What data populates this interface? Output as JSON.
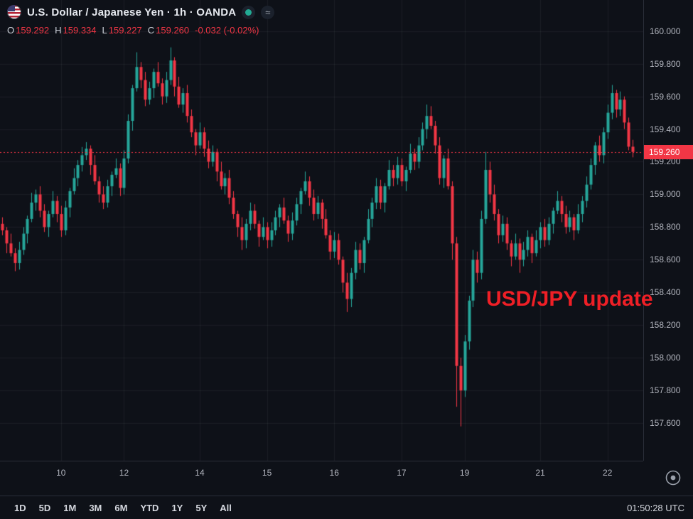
{
  "header": {
    "title": "U.S. Dollar / Japanese Yen · 1h · OANDA",
    "approx_symbol": "≈"
  },
  "ohlc": {
    "o_label": "O",
    "o": "159.292",
    "h_label": "H",
    "h": "159.334",
    "l_label": "L",
    "l": "159.227",
    "c_label": "C",
    "c": "159.260",
    "change": "-0.032 (-0.02%)"
  },
  "annotation": {
    "text": "USD/JPY update"
  },
  "price_axis": {
    "last_price_label": "159.260"
  },
  "time_axis": {
    "ticks": [
      {
        "label": "10",
        "bar": 14.5
      },
      {
        "label": "12",
        "bar": 29.5
      },
      {
        "label": "14",
        "bar": 47.5
      },
      {
        "label": "15",
        "bar": 63.5
      },
      {
        "label": "16",
        "bar": 79.5
      },
      {
        "label": "17",
        "bar": 95.5
      },
      {
        "label": "19",
        "bar": 110.5
      },
      {
        "label": "21",
        "bar": 128.5
      },
      {
        "label": "22",
        "bar": 144.5
      }
    ]
  },
  "toolbar": {
    "ranges": [
      "1D",
      "5D",
      "1M",
      "3M",
      "6M",
      "YTD",
      "1Y",
      "5Y",
      "All"
    ],
    "clock": "01:50:28 UTC"
  },
  "colors": {
    "bg": "#0e1118",
    "grid": "rgba(255,255,255,0.055)",
    "axis_text": "#b2b5be"
  },
  "chart_data": {
    "type": "candlestick",
    "title": "U.S. Dollar / Japanese Yen",
    "interval": "1h",
    "provider": "OANDA",
    "last_price": 159.26,
    "price_min": 157.37,
    "price_max": 160.19,
    "grid_step": 0.2,
    "y_ticks": [
      160.0,
      159.8,
      159.6,
      159.4,
      159.2,
      159.0,
      158.8,
      158.6,
      158.4,
      158.2,
      158.0,
      157.8,
      157.6
    ],
    "up_color": "#26a69a",
    "down_color": "#f23645",
    "candles": [
      [
        158.82,
        158.86,
        158.75,
        158.78
      ],
      [
        158.78,
        158.8,
        158.64,
        158.7
      ],
      [
        158.7,
        158.76,
        158.62,
        158.64
      ],
      [
        158.64,
        158.67,
        158.53,
        158.58
      ],
      [
        158.58,
        158.71,
        158.54,
        158.66
      ],
      [
        158.66,
        158.8,
        158.63,
        158.76
      ],
      [
        158.76,
        158.87,
        158.7,
        158.85
      ],
      [
        158.85,
        159.01,
        158.83,
        158.95
      ],
      [
        158.95,
        159.03,
        158.9,
        159.0
      ],
      [
        159.0,
        159.05,
        158.86,
        158.9
      ],
      [
        158.9,
        158.94,
        158.77,
        158.8
      ],
      [
        158.8,
        158.9,
        158.74,
        158.88
      ],
      [
        158.88,
        159.02,
        158.86,
        158.96
      ],
      [
        158.96,
        158.99,
        158.83,
        158.88
      ],
      [
        158.88,
        158.93,
        158.74,
        158.78
      ],
      [
        158.78,
        158.96,
        158.75,
        158.92
      ],
      [
        158.92,
        159.04,
        158.86,
        159.02
      ],
      [
        159.02,
        159.16,
        159.0,
        159.1
      ],
      [
        159.1,
        159.21,
        159.05,
        159.18
      ],
      [
        159.18,
        159.29,
        159.14,
        159.24
      ],
      [
        159.24,
        159.32,
        159.21,
        159.28
      ],
      [
        159.28,
        159.3,
        159.12,
        159.18
      ],
      [
        159.18,
        159.24,
        159.06,
        159.08
      ],
      [
        159.08,
        159.11,
        158.95,
        159.0
      ],
      [
        159.0,
        159.05,
        158.91,
        158.95
      ],
      [
        158.95,
        159.09,
        158.92,
        159.05
      ],
      [
        159.05,
        159.14,
        158.99,
        159.12
      ],
      [
        159.12,
        159.22,
        159.1,
        159.16
      ],
      [
        159.16,
        159.19,
        158.99,
        159.04
      ],
      [
        159.04,
        159.27,
        159.0,
        159.22
      ],
      [
        159.22,
        159.49,
        159.19,
        159.45
      ],
      [
        159.45,
        159.67,
        159.39,
        159.65
      ],
      [
        159.65,
        159.87,
        159.63,
        159.78
      ],
      [
        159.78,
        159.81,
        159.65,
        159.7
      ],
      [
        159.7,
        159.75,
        159.54,
        159.58
      ],
      [
        159.58,
        159.69,
        159.55,
        159.65
      ],
      [
        159.65,
        159.77,
        159.59,
        159.75
      ],
      [
        159.75,
        159.81,
        159.66,
        159.68
      ],
      [
        159.68,
        159.71,
        159.55,
        159.6
      ],
      [
        159.6,
        159.75,
        159.56,
        159.7
      ],
      [
        159.7,
        159.9,
        159.67,
        159.82
      ],
      [
        159.82,
        159.84,
        159.6,
        159.66
      ],
      [
        159.66,
        159.72,
        159.53,
        159.55
      ],
      [
        159.55,
        159.65,
        159.5,
        159.62
      ],
      [
        159.62,
        159.67,
        159.44,
        159.48
      ],
      [
        159.48,
        159.52,
        159.35,
        159.38
      ],
      [
        159.38,
        159.4,
        159.24,
        159.3
      ],
      [
        159.3,
        159.44,
        159.28,
        159.38
      ],
      [
        159.38,
        159.41,
        159.23,
        159.28
      ],
      [
        159.28,
        159.33,
        159.16,
        159.2
      ],
      [
        159.2,
        159.3,
        159.17,
        159.26
      ],
      [
        159.26,
        159.28,
        159.08,
        159.14
      ],
      [
        159.14,
        159.2,
        159.03,
        159.05
      ],
      [
        159.05,
        159.13,
        159.0,
        159.1
      ],
      [
        159.1,
        159.15,
        158.94,
        158.98
      ],
      [
        158.98,
        159.02,
        158.85,
        158.88
      ],
      [
        158.88,
        158.9,
        158.74,
        158.8
      ],
      [
        158.8,
        158.86,
        158.66,
        158.72
      ],
      [
        158.72,
        158.85,
        158.67,
        158.82
      ],
      [
        158.82,
        158.95,
        158.78,
        158.9
      ],
      [
        158.9,
        158.94,
        158.79,
        158.82
      ],
      [
        158.82,
        158.84,
        158.68,
        158.74
      ],
      [
        158.74,
        158.86,
        158.72,
        158.8
      ],
      [
        158.8,
        158.83,
        158.67,
        158.72
      ],
      [
        158.72,
        158.83,
        158.68,
        158.78
      ],
      [
        158.78,
        158.9,
        158.75,
        158.86
      ],
      [
        158.86,
        158.94,
        158.8,
        158.92
      ],
      [
        158.92,
        158.98,
        158.82,
        158.84
      ],
      [
        158.84,
        158.87,
        158.71,
        158.76
      ],
      [
        158.76,
        158.89,
        158.72,
        158.84
      ],
      [
        158.84,
        158.98,
        158.81,
        158.94
      ],
      [
        158.94,
        159.04,
        158.88,
        159.02
      ],
      [
        159.02,
        159.14,
        159.0,
        159.08
      ],
      [
        159.08,
        159.11,
        158.93,
        158.98
      ],
      [
        158.98,
        159.03,
        158.84,
        158.88
      ],
      [
        158.88,
        158.99,
        158.85,
        158.95
      ],
      [
        158.95,
        158.97,
        158.79,
        158.85
      ],
      [
        158.85,
        158.91,
        158.73,
        158.75
      ],
      [
        158.75,
        158.78,
        158.6,
        158.65
      ],
      [
        158.65,
        158.77,
        158.61,
        158.72
      ],
      [
        158.72,
        158.76,
        158.57,
        158.6
      ],
      [
        158.6,
        158.62,
        158.4,
        158.46
      ],
      [
        158.46,
        158.52,
        158.28,
        158.36
      ],
      [
        158.36,
        158.55,
        158.31,
        158.52
      ],
      [
        158.52,
        158.71,
        158.48,
        158.66
      ],
      [
        158.66,
        158.7,
        158.54,
        158.58
      ],
      [
        158.58,
        158.74,
        158.52,
        158.72
      ],
      [
        158.72,
        158.91,
        158.7,
        158.85
      ],
      [
        158.85,
        158.98,
        158.8,
        158.95
      ],
      [
        158.95,
        159.1,
        158.91,
        159.05
      ],
      [
        159.05,
        159.09,
        158.91,
        158.95
      ],
      [
        158.95,
        159.07,
        158.89,
        159.05
      ],
      [
        159.05,
        159.21,
        159.03,
        159.15
      ],
      [
        159.15,
        159.18,
        159.05,
        159.1
      ],
      [
        159.1,
        159.23,
        159.06,
        159.18
      ],
      [
        159.18,
        159.22,
        159.05,
        159.08
      ],
      [
        159.08,
        159.17,
        159.02,
        159.15
      ],
      [
        159.15,
        159.31,
        159.13,
        159.25
      ],
      [
        159.25,
        159.28,
        159.15,
        159.2
      ],
      [
        159.2,
        159.35,
        159.16,
        159.3
      ],
      [
        159.3,
        159.44,
        159.27,
        159.4
      ],
      [
        159.4,
        159.55,
        159.34,
        159.48
      ],
      [
        159.48,
        159.54,
        159.4,
        159.42
      ],
      [
        159.42,
        159.45,
        159.25,
        159.3
      ],
      [
        159.3,
        159.35,
        159.06,
        159.1
      ],
      [
        159.1,
        159.24,
        159.04,
        159.22
      ],
      [
        159.22,
        159.28,
        159.03,
        159.05
      ],
      [
        159.05,
        159.08,
        158.6,
        158.7
      ],
      [
        158.7,
        158.74,
        157.7,
        157.95
      ],
      [
        157.95,
        158.0,
        157.58,
        157.8
      ],
      [
        157.8,
        158.14,
        157.76,
        158.1
      ],
      [
        158.1,
        158.38,
        158.05,
        158.35
      ],
      [
        158.35,
        158.66,
        158.31,
        158.6
      ],
      [
        158.6,
        158.65,
        158.46,
        158.52
      ],
      [
        158.52,
        158.9,
        158.48,
        158.85
      ],
      [
        158.85,
        159.26,
        158.82,
        159.15
      ],
      [
        159.15,
        159.2,
        158.95,
        159.0
      ],
      [
        159.0,
        159.06,
        158.84,
        158.88
      ],
      [
        158.88,
        158.91,
        158.7,
        158.75
      ],
      [
        158.75,
        158.87,
        158.71,
        158.82
      ],
      [
        158.82,
        158.86,
        158.66,
        158.7
      ],
      [
        158.7,
        158.72,
        158.56,
        158.62
      ],
      [
        158.62,
        158.76,
        158.6,
        158.7
      ],
      [
        158.7,
        158.73,
        158.52,
        158.6
      ],
      [
        158.6,
        158.71,
        158.56,
        158.66
      ],
      [
        158.66,
        158.78,
        158.62,
        158.74
      ],
      [
        158.74,
        158.76,
        158.58,
        158.64
      ],
      [
        158.64,
        158.78,
        158.62,
        158.72
      ],
      [
        158.72,
        158.83,
        158.67,
        158.8
      ],
      [
        158.8,
        158.85,
        158.68,
        158.72
      ],
      [
        158.72,
        158.86,
        158.69,
        158.82
      ],
      [
        158.82,
        158.92,
        158.76,
        158.9
      ],
      [
        158.9,
        159.02,
        158.88,
        158.96
      ],
      [
        158.96,
        158.99,
        158.83,
        158.88
      ],
      [
        158.88,
        158.93,
        158.76,
        158.8
      ],
      [
        158.8,
        158.9,
        158.77,
        158.86
      ],
      [
        158.86,
        158.88,
        158.72,
        158.78
      ],
      [
        158.78,
        158.94,
        158.76,
        158.88
      ],
      [
        158.88,
        158.99,
        158.83,
        158.96
      ],
      [
        158.96,
        159.11,
        158.92,
        159.06
      ],
      [
        159.06,
        159.22,
        159.03,
        159.18
      ],
      [
        159.18,
        159.32,
        159.12,
        159.3
      ],
      [
        159.3,
        159.36,
        159.2,
        159.24
      ],
      [
        159.24,
        159.41,
        159.19,
        159.38
      ],
      [
        159.38,
        159.55,
        159.34,
        159.5
      ],
      [
        159.5,
        159.67,
        159.46,
        159.62
      ],
      [
        159.62,
        159.64,
        159.47,
        159.52
      ],
      [
        159.52,
        159.63,
        159.48,
        159.58
      ],
      [
        159.58,
        159.6,
        159.4,
        159.44
      ],
      [
        159.44,
        159.47,
        159.27,
        159.292
      ],
      [
        159.292,
        159.334,
        159.227,
        159.26
      ]
    ]
  }
}
